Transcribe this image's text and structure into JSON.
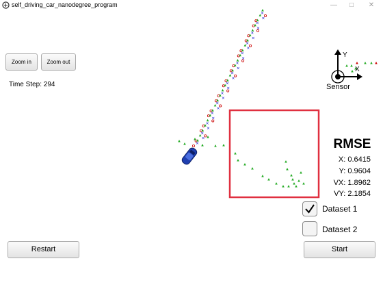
{
  "window": {
    "title": "self_driving_car_nanodegree_program",
    "minimize_icon": "minimize-icon",
    "maximize_icon": "maximize-icon",
    "close_icon": "close-icon"
  },
  "controls": {
    "zoom_in": "Zoom in",
    "zoom_out": "Zoom out",
    "restart": "Restart",
    "start": "Start"
  },
  "timestep": {
    "text": "Time Step: 294"
  },
  "axes_widget": {
    "x_label": "X",
    "y_label": "Y",
    "sensor_label": "Sensor"
  },
  "rmse": {
    "title": "RMSE",
    "x": "X: 0.6415",
    "y": "Y: 0.9604",
    "vx": "VX: 1.8962",
    "vy": "VY: 2.1854"
  },
  "datasets": [
    {
      "label": "Dataset 1",
      "checked": true
    },
    {
      "label": "Dataset 2",
      "checked": false
    }
  ],
  "colors": {
    "lidar": "#0000cc",
    "radar": "#cc0000",
    "estimate": "#22aa22",
    "car": "#1f3fb0",
    "highlight": "#e03040"
  }
}
